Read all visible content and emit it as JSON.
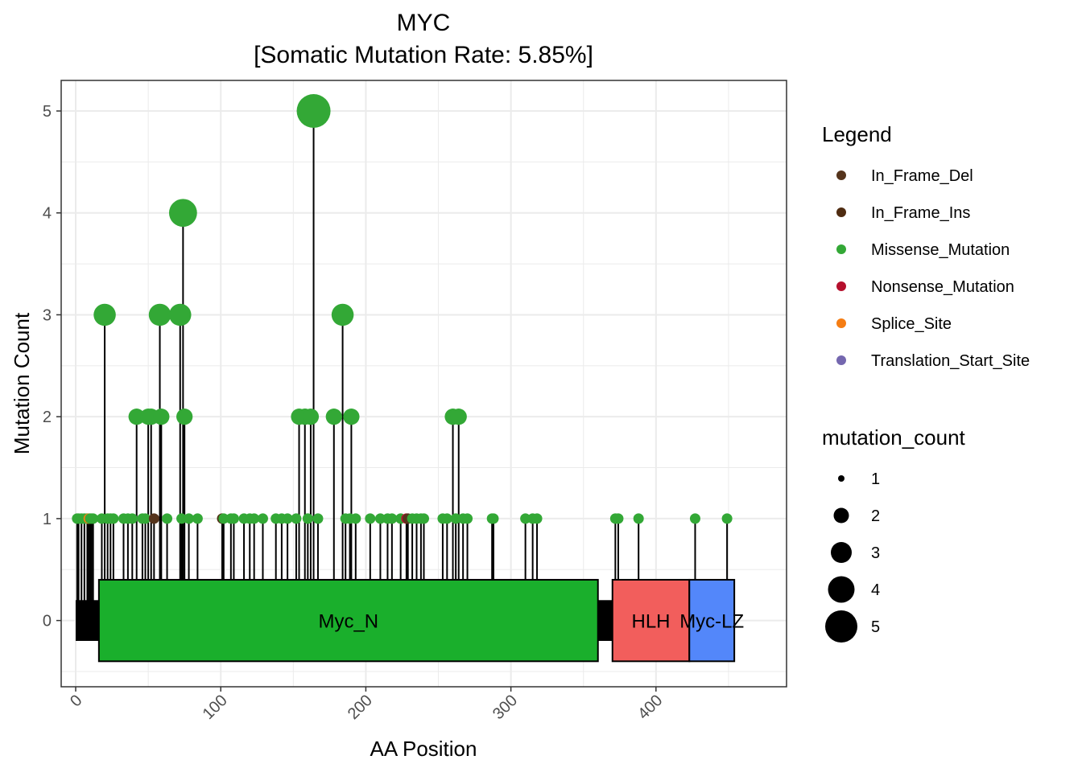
{
  "chart_data": {
    "type": "lollipop",
    "title": "MYC",
    "subtitle": "[Somatic Mutation Rate: 5.85%]",
    "xlabel": "AA Position",
    "ylabel": "Mutation Count",
    "xlim": [
      -10,
      490
    ],
    "ylim": [
      -0.65,
      5.3
    ],
    "x_ticks": [
      0,
      100,
      200,
      300,
      400
    ],
    "y_ticks": [
      0,
      1,
      2,
      3,
      4,
      5
    ],
    "grid": true,
    "legend_position": "right",
    "protein_length": 454,
    "domains": [
      {
        "name": "Myc_N",
        "start": 16,
        "end": 360,
        "color": "#1AAF2C"
      },
      {
        "name": "HLH",
        "start": 370,
        "end": 423,
        "color": "#F25E5C"
      },
      {
        "name": "Myc-LZ",
        "start": 423,
        "end": 454,
        "color": "#5387FA"
      }
    ],
    "mutation_types": [
      {
        "name": "In_Frame_Del",
        "color": "#55341C"
      },
      {
        "name": "In_Frame_Ins",
        "color": "#4F2C11"
      },
      {
        "name": "Missense_Mutation",
        "color": "#33A836"
      },
      {
        "name": "Nonsense_Mutation",
        "color": "#B5102D"
      },
      {
        "name": "Splice_Site",
        "color": "#F57D13"
      },
      {
        "name": "Translation_Start_Site",
        "color": "#7467AF"
      }
    ],
    "size_legend": {
      "title": "mutation_count",
      "values": [
        1,
        2,
        3,
        4,
        5
      ]
    },
    "mutations": [
      {
        "x": 1,
        "count": 1,
        "type": "Missense_Mutation"
      },
      {
        "x": 2,
        "count": 1,
        "type": "Missense_Mutation"
      },
      {
        "x": 4,
        "count": 1,
        "type": "Missense_Mutation"
      },
      {
        "x": 6,
        "count": 1,
        "type": "Missense_Mutation"
      },
      {
        "x": 8,
        "count": 1,
        "type": "Missense_Mutation"
      },
      {
        "x": 9,
        "count": 1,
        "type": "Splice_Site"
      },
      {
        "x": 10,
        "count": 1,
        "type": "Missense_Mutation"
      },
      {
        "x": 11,
        "count": 1,
        "type": "Missense_Mutation"
      },
      {
        "x": 12,
        "count": 1,
        "type": "Missense_Mutation"
      },
      {
        "x": 18,
        "count": 1,
        "type": "Missense_Mutation"
      },
      {
        "x": 20,
        "count": 3,
        "type": "Missense_Mutation"
      },
      {
        "x": 22,
        "count": 1,
        "type": "Missense_Mutation"
      },
      {
        "x": 24,
        "count": 1,
        "type": "Missense_Mutation"
      },
      {
        "x": 26,
        "count": 1,
        "type": "Missense_Mutation"
      },
      {
        "x": 33,
        "count": 1,
        "type": "Missense_Mutation"
      },
      {
        "x": 36,
        "count": 1,
        "type": "Missense_Mutation"
      },
      {
        "x": 39,
        "count": 1,
        "type": "Missense_Mutation"
      },
      {
        "x": 42,
        "count": 2,
        "type": "Missense_Mutation"
      },
      {
        "x": 46,
        "count": 1,
        "type": "Missense_Mutation"
      },
      {
        "x": 48,
        "count": 1,
        "type": "Missense_Mutation"
      },
      {
        "x": 50,
        "count": 2,
        "type": "Missense_Mutation"
      },
      {
        "x": 52,
        "count": 2,
        "type": "Missense_Mutation"
      },
      {
        "x": 54,
        "count": 1,
        "type": "In_Frame_Del"
      },
      {
        "x": 58,
        "count": 3,
        "type": "Missense_Mutation"
      },
      {
        "x": 59,
        "count": 2,
        "type": "Missense_Mutation"
      },
      {
        "x": 63,
        "count": 1,
        "type": "Missense_Mutation"
      },
      {
        "x": 72,
        "count": 3,
        "type": "Missense_Mutation"
      },
      {
        "x": 73,
        "count": 1,
        "type": "Missense_Mutation"
      },
      {
        "x": 74,
        "count": 4,
        "type": "Missense_Mutation"
      },
      {
        "x": 75,
        "count": 2,
        "type": "Missense_Mutation"
      },
      {
        "x": 78,
        "count": 1,
        "type": "Missense_Mutation"
      },
      {
        "x": 84,
        "count": 1,
        "type": "Missense_Mutation"
      },
      {
        "x": 101,
        "count": 1,
        "type": "In_Frame_Ins"
      },
      {
        "x": 102,
        "count": 1,
        "type": "Missense_Mutation"
      },
      {
        "x": 107,
        "count": 1,
        "type": "Missense_Mutation"
      },
      {
        "x": 109,
        "count": 1,
        "type": "Missense_Mutation"
      },
      {
        "x": 116,
        "count": 1,
        "type": "Missense_Mutation"
      },
      {
        "x": 120,
        "count": 1,
        "type": "Missense_Mutation"
      },
      {
        "x": 123,
        "count": 1,
        "type": "Missense_Mutation"
      },
      {
        "x": 129,
        "count": 1,
        "type": "Missense_Mutation"
      },
      {
        "x": 138,
        "count": 1,
        "type": "Missense_Mutation"
      },
      {
        "x": 142,
        "count": 1,
        "type": "Missense_Mutation"
      },
      {
        "x": 146,
        "count": 1,
        "type": "Missense_Mutation"
      },
      {
        "x": 152,
        "count": 1,
        "type": "Missense_Mutation"
      },
      {
        "x": 154,
        "count": 2,
        "type": "Missense_Mutation"
      },
      {
        "x": 158,
        "count": 2,
        "type": "Missense_Mutation"
      },
      {
        "x": 160,
        "count": 1,
        "type": "Missense_Mutation"
      },
      {
        "x": 162,
        "count": 2,
        "type": "Missense_Mutation"
      },
      {
        "x": 164,
        "count": 5,
        "type": "Missense_Mutation"
      },
      {
        "x": 167,
        "count": 1,
        "type": "Missense_Mutation"
      },
      {
        "x": 178,
        "count": 2,
        "type": "Missense_Mutation"
      },
      {
        "x": 184,
        "count": 3,
        "type": "Missense_Mutation"
      },
      {
        "x": 186,
        "count": 1,
        "type": "Missense_Mutation"
      },
      {
        "x": 189,
        "count": 1,
        "type": "Missense_Mutation"
      },
      {
        "x": 190,
        "count": 2,
        "type": "Missense_Mutation"
      },
      {
        "x": 193,
        "count": 1,
        "type": "Missense_Mutation"
      },
      {
        "x": 203,
        "count": 1,
        "type": "Missense_Mutation"
      },
      {
        "x": 210,
        "count": 1,
        "type": "Missense_Mutation"
      },
      {
        "x": 215,
        "count": 1,
        "type": "Missense_Mutation"
      },
      {
        "x": 218,
        "count": 1,
        "type": "Missense_Mutation"
      },
      {
        "x": 224,
        "count": 1,
        "type": "Missense_Mutation"
      },
      {
        "x": 228,
        "count": 1,
        "type": "Nonsense_Mutation"
      },
      {
        "x": 229,
        "count": 1,
        "type": "In_Frame_Del"
      },
      {
        "x": 232,
        "count": 1,
        "type": "Missense_Mutation"
      },
      {
        "x": 235,
        "count": 1,
        "type": "Missense_Mutation"
      },
      {
        "x": 238,
        "count": 1,
        "type": "Missense_Mutation"
      },
      {
        "x": 240,
        "count": 1,
        "type": "Missense_Mutation"
      },
      {
        "x": 253,
        "count": 1,
        "type": "Missense_Mutation"
      },
      {
        "x": 256,
        "count": 1,
        "type": "Missense_Mutation"
      },
      {
        "x": 260,
        "count": 2,
        "type": "Missense_Mutation"
      },
      {
        "x": 262,
        "count": 1,
        "type": "Missense_Mutation"
      },
      {
        "x": 264,
        "count": 2,
        "type": "Missense_Mutation"
      },
      {
        "x": 267,
        "count": 1,
        "type": "Missense_Mutation"
      },
      {
        "x": 270,
        "count": 1,
        "type": "Missense_Mutation"
      },
      {
        "x": 287,
        "count": 1,
        "type": "Missense_Mutation"
      },
      {
        "x": 288,
        "count": 1,
        "type": "Missense_Mutation"
      },
      {
        "x": 310,
        "count": 1,
        "type": "Missense_Mutation"
      },
      {
        "x": 315,
        "count": 1,
        "type": "Missense_Mutation"
      },
      {
        "x": 318,
        "count": 1,
        "type": "Missense_Mutation"
      },
      {
        "x": 372,
        "count": 1,
        "type": "Missense_Mutation"
      },
      {
        "x": 374,
        "count": 1,
        "type": "Missense_Mutation"
      },
      {
        "x": 388,
        "count": 1,
        "type": "Missense_Mutation"
      },
      {
        "x": 427,
        "count": 1,
        "type": "Missense_Mutation"
      },
      {
        "x": 449,
        "count": 1,
        "type": "Missense_Mutation"
      }
    ]
  }
}
